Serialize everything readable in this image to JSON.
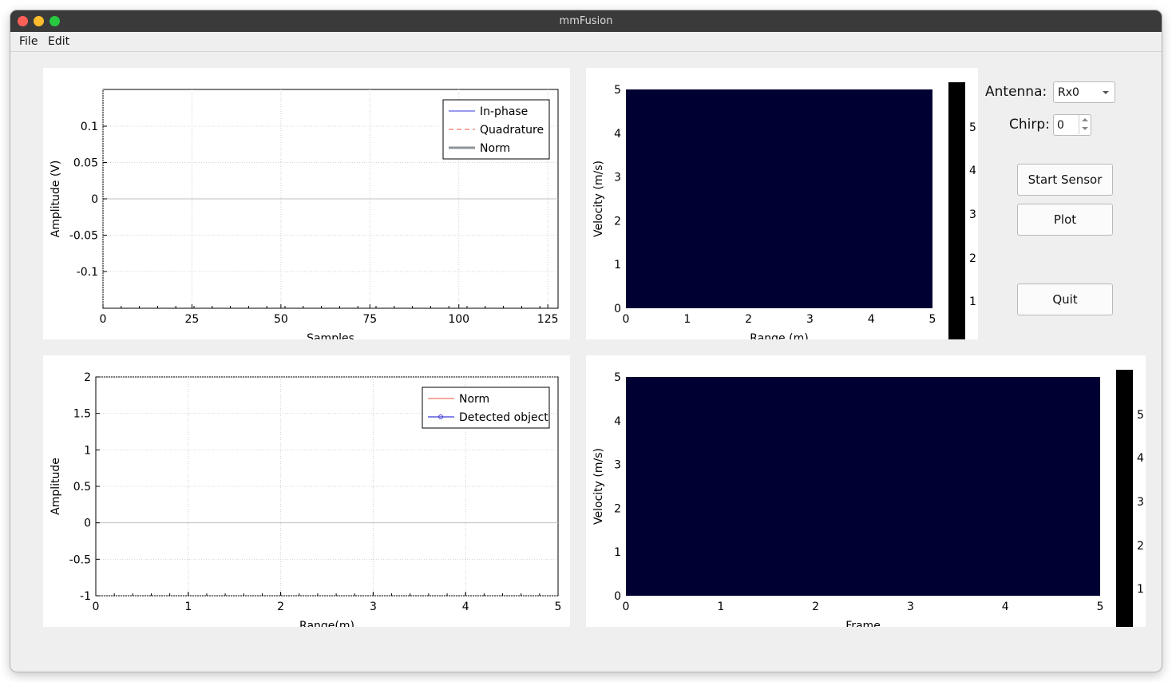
{
  "window": {
    "title": "mmFusion"
  },
  "menu": {
    "file": "File",
    "edit": "Edit"
  },
  "controls": {
    "antenna_label": "Antenna:",
    "antenna_value": "Rx0",
    "chirp_label": "Chirp:",
    "chirp_value": "0",
    "start_sensor": "Start Sensor",
    "plot": "Plot",
    "quit": "Quit"
  },
  "plots": {
    "signal": {
      "xlabel": "Samples",
      "ylabel": "Amplitude (V)",
      "xticks": [
        "0",
        "25",
        "50",
        "75",
        "100",
        "125"
      ],
      "yticks": [
        "0.1",
        "0.05",
        "0",
        "-0.05",
        "-0.1"
      ],
      "legend": [
        "In-phase",
        "Quadrature",
        "Norm"
      ]
    },
    "range_doppler": {
      "xlabel": "Range (m)",
      "ylabel": "Velocity (m/s)",
      "xticks": [
        "0",
        "1",
        "2",
        "3",
        "4",
        "5"
      ],
      "yticks": [
        "5",
        "4",
        "3",
        "2",
        "1",
        "0"
      ],
      "colorbar_ticks": [
        "5",
        "4",
        "3",
        "2",
        "1"
      ]
    },
    "range_profile": {
      "xlabel": "Range(m)",
      "ylabel": "Amplitude",
      "xticks": [
        "0",
        "1",
        "2",
        "3",
        "4",
        "5"
      ],
      "yticks": [
        "2",
        "1.5",
        "1",
        "0.5",
        "0",
        "-0.5",
        "-1"
      ],
      "legend": [
        "Norm",
        "Detected object"
      ]
    },
    "doppler_time": {
      "xlabel": "Frame",
      "ylabel": "Velocity (m/s)",
      "xticks": [
        "0",
        "1",
        "2",
        "3",
        "4",
        "5"
      ],
      "yticks": [
        "5",
        "4",
        "3",
        "2",
        "1",
        "0"
      ],
      "colorbar_ticks": [
        "5",
        "4",
        "3",
        "2",
        "1"
      ]
    }
  },
  "colors": {
    "heatmap_fill": "#000032",
    "colorbar": "#000000",
    "inphase_line": "#9a9af0",
    "quadrature_line": "#f5a9a0",
    "norm_line": "#8e9598",
    "norm2_line": "#f5a9a0",
    "detected_line": "#3b3bd8"
  }
}
